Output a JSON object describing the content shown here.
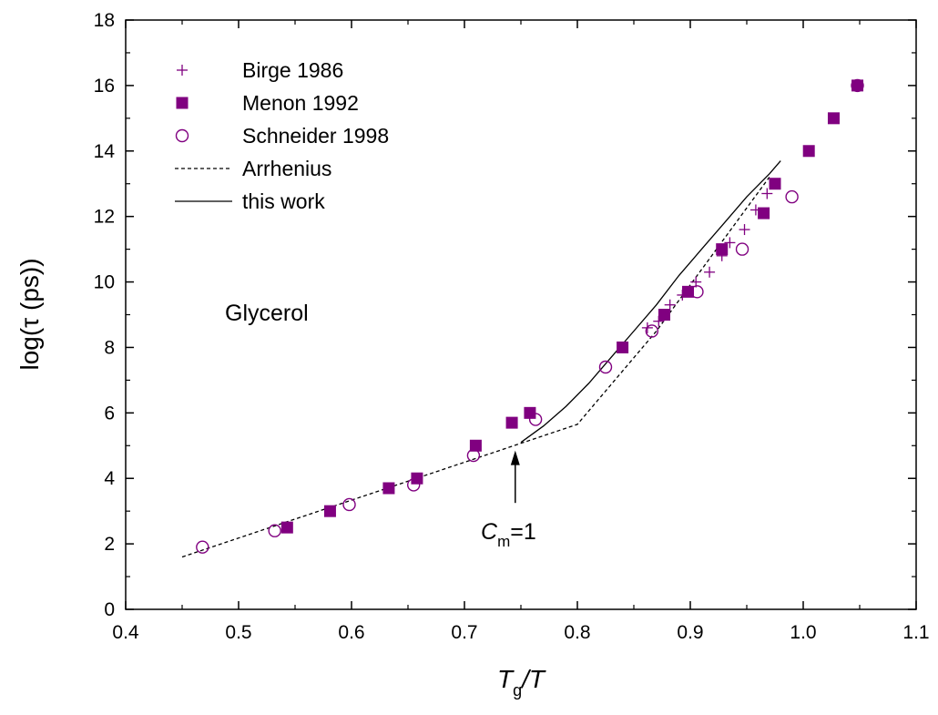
{
  "chart_data": {
    "type": "scatter",
    "xlabel": {
      "main": "T",
      "sub": "g",
      "rest": "/T"
    },
    "ylabel": "log(τ (ps))",
    "xlim": [
      0.4,
      1.1
    ],
    "ylim": [
      0,
      18
    ],
    "xticks": [
      "0.4",
      "0.5",
      "0.6",
      "0.7",
      "0.8",
      "0.9",
      "1.0",
      "1.1"
    ],
    "yticks": [
      "0",
      "2",
      "4",
      "6",
      "8",
      "10",
      "12",
      "14",
      "16",
      "18"
    ],
    "grid": false,
    "legend_position": "top-left",
    "colors": {
      "marker": "#800080",
      "line": "#000000"
    },
    "series": [
      {
        "name": "Birge 1986",
        "marker": "plus",
        "points": [
          [
            0.862,
            8.6
          ],
          [
            0.872,
            8.8
          ],
          [
            0.882,
            9.3
          ],
          [
            0.893,
            9.6
          ],
          [
            0.905,
            10.0
          ],
          [
            0.917,
            10.3
          ],
          [
            0.928,
            10.8
          ],
          [
            0.935,
            11.2
          ],
          [
            0.948,
            11.6
          ],
          [
            0.958,
            12.2
          ],
          [
            0.968,
            12.7
          ]
        ]
      },
      {
        "name": "Menon 1992",
        "marker": "filled-square",
        "points": [
          [
            0.543,
            2.5
          ],
          [
            0.581,
            3.0
          ],
          [
            0.633,
            3.7
          ],
          [
            0.658,
            4.0
          ],
          [
            0.71,
            5.0
          ],
          [
            0.742,
            5.7
          ],
          [
            0.758,
            6.0
          ],
          [
            0.84,
            8.0
          ],
          [
            0.877,
            9.0
          ],
          [
            0.898,
            9.7
          ],
          [
            0.928,
            11.0
          ],
          [
            0.965,
            12.1
          ],
          [
            0.975,
            13.0
          ],
          [
            1.005,
            14.0
          ],
          [
            1.027,
            15.0
          ],
          [
            1.048,
            16.0
          ]
        ]
      },
      {
        "name": "Schneider 1998",
        "marker": "open-circle",
        "points": [
          [
            0.468,
            1.9
          ],
          [
            0.532,
            2.4
          ],
          [
            0.598,
            3.2
          ],
          [
            0.655,
            3.8
          ],
          [
            0.708,
            4.7
          ],
          [
            0.763,
            5.8
          ],
          [
            0.825,
            7.4
          ],
          [
            0.866,
            8.5
          ],
          [
            0.906,
            9.7
          ],
          [
            0.946,
            11.0
          ],
          [
            0.99,
            12.6
          ],
          [
            1.048,
            16.0
          ]
        ]
      },
      {
        "name": "Arrhenius",
        "line": "dashed",
        "points": [
          [
            0.45,
            1.6
          ],
          [
            0.8,
            5.65
          ],
          [
            0.87,
            8.5
          ],
          [
            0.97,
            13.2
          ]
        ]
      },
      {
        "name": "this work",
        "line": "solid",
        "points": [
          [
            0.75,
            5.1
          ],
          [
            0.77,
            5.6
          ],
          [
            0.79,
            6.2
          ],
          [
            0.81,
            6.9
          ],
          [
            0.83,
            7.7
          ],
          [
            0.85,
            8.5
          ],
          [
            0.87,
            9.3
          ],
          [
            0.89,
            10.2
          ],
          [
            0.91,
            11.0
          ],
          [
            0.93,
            11.8
          ],
          [
            0.95,
            12.6
          ],
          [
            0.97,
            13.3
          ],
          [
            0.98,
            13.7
          ]
        ]
      }
    ],
    "annotations": [
      {
        "text": "Glycerol",
        "position": "left-middle"
      },
      {
        "text_main": "C",
        "text_sub": "m",
        "text_rest": "=1",
        "arrow_to": [
          0.745,
          4.85
        ],
        "arrow_from": [
          0.745,
          3.25
        ]
      }
    ]
  }
}
